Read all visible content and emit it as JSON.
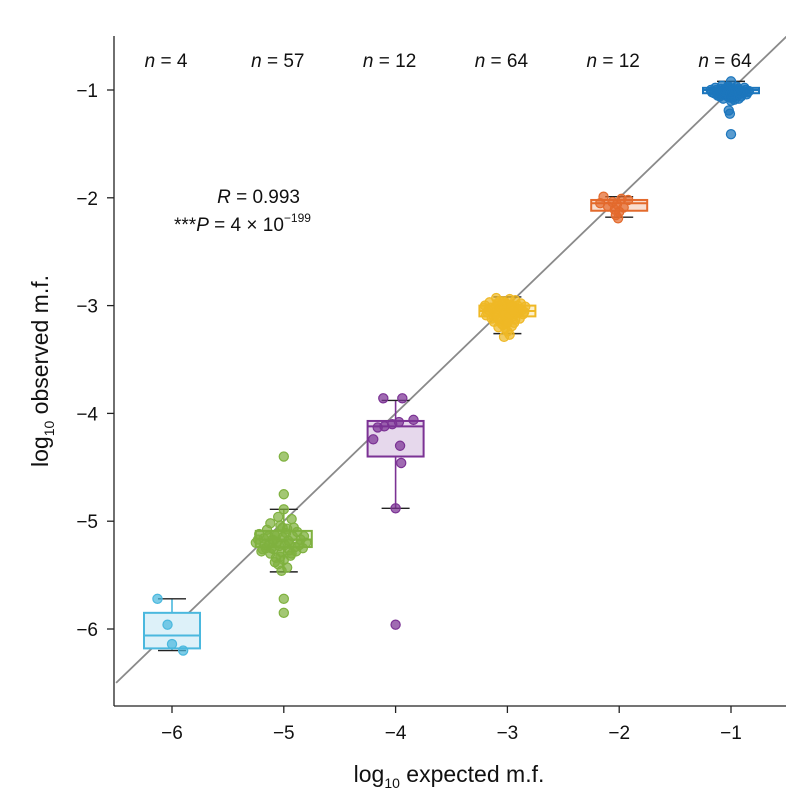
{
  "chart_data": {
    "type": "box",
    "xlabel": {
      "prefix": "log",
      "subscript": "10",
      "rest": " expected m.f."
    },
    "ylabel": {
      "prefix": "log",
      "subscript": "10",
      "rest": " observed m.f."
    },
    "xlim": [
      -6.5,
      -0.45
    ],
    "ylim": [
      -6.72,
      -0.45
    ],
    "x_ticks": [
      -6,
      -5,
      -4,
      -3,
      -2,
      -1
    ],
    "x_tick_labels": [
      "−6",
      "−5",
      "−4",
      "−3",
      "−2",
      "−1"
    ],
    "y_ticks": [
      -1,
      -2,
      -3,
      -4,
      -5,
      -6
    ],
    "y_tick_labels": [
      "−1",
      "−2",
      "−3",
      "−4",
      "−5",
      "−6"
    ],
    "reference_line": {
      "slope": 1,
      "intercept": 0,
      "color": "#8a8a8a"
    },
    "stats": {
      "r_label": "R",
      "r_text": " = 0.993",
      "p_stars": "***",
      "p_label": "P",
      "p_text": " = 4 × 10",
      "p_exponent": "−199"
    },
    "groups": [
      {
        "x": -6,
        "n_var": "n",
        "n_text": " = 4",
        "color": "#4ab8de",
        "fill": "#ddf1f9",
        "box": {
          "q1": -6.18,
          "median": -6.06,
          "q3": -5.85,
          "whisker_low": -6.2,
          "whisker_high": -5.72
        },
        "points": [
          [
            -6.13,
            -5.72
          ],
          [
            -6.04,
            -5.96
          ],
          [
            -6.0,
            -6.14
          ],
          [
            -5.9,
            -6.2
          ]
        ]
      },
      {
        "x": -5,
        "n_var": "n",
        "n_text": " = 57",
        "color": "#7fb13f",
        "fill": "#e7f1d9",
        "box": {
          "q1": -5.24,
          "median": -5.17,
          "q3": -5.09,
          "whisker_low": -5.47,
          "whisker_high": -4.89
        },
        "points": [
          [
            -5.0,
            -4.4
          ],
          [
            -5.0,
            -4.75
          ],
          [
            -5.0,
            -4.89
          ],
          [
            -5.05,
            -4.96
          ],
          [
            -4.93,
            -4.98
          ],
          [
            -5.12,
            -5.02
          ],
          [
            -5.03,
            -5.04
          ],
          [
            -4.97,
            -5.07
          ],
          [
            -5.15,
            -5.08
          ],
          [
            -4.88,
            -5.1
          ],
          [
            -5.22,
            -5.12
          ],
          [
            -5.08,
            -5.13
          ],
          [
            -4.92,
            -5.14
          ],
          [
            -5.01,
            -5.15
          ],
          [
            -5.18,
            -5.16
          ],
          [
            -5.1,
            -5.17
          ],
          [
            -4.85,
            -5.17
          ],
          [
            -4.96,
            -5.18
          ],
          [
            -5.06,
            -5.19
          ],
          [
            -5.25,
            -5.2
          ],
          [
            -4.8,
            -5.2
          ],
          [
            -5.13,
            -5.21
          ],
          [
            -4.99,
            -5.22
          ],
          [
            -5.04,
            -5.23
          ],
          [
            -4.9,
            -5.24
          ],
          [
            -5.16,
            -5.25
          ],
          [
            -4.83,
            -5.25
          ],
          [
            -5.09,
            -5.26
          ],
          [
            -4.95,
            -5.27
          ],
          [
            -5.2,
            -5.28
          ],
          [
            -5.02,
            -5.29
          ],
          [
            -5.12,
            -5.3
          ],
          [
            -4.94,
            -5.32
          ],
          [
            -5.07,
            -5.34
          ],
          [
            -5.0,
            -5.36
          ],
          [
            -5.05,
            -5.4
          ],
          [
            -4.97,
            -5.43
          ],
          [
            -5.02,
            -5.46
          ],
          [
            -5.0,
            -5.72
          ],
          [
            -5.0,
            -5.85
          ],
          [
            -5.14,
            -5.14
          ],
          [
            -4.86,
            -5.22
          ],
          [
            -5.23,
            -5.17
          ],
          [
            -4.91,
            -5.06
          ],
          [
            -5.11,
            -5.25
          ],
          [
            -4.98,
            -5.11
          ],
          [
            -5.06,
            -5.12
          ],
          [
            -4.89,
            -5.28
          ],
          [
            -5.17,
            -5.22
          ],
          [
            -5.03,
            -5.33
          ],
          [
            -4.95,
            -5.21
          ],
          [
            -5.09,
            -5.18
          ],
          [
            -4.82,
            -5.14
          ],
          [
            -5.19,
            -5.26
          ],
          [
            -5.01,
            -5.06
          ],
          [
            -4.93,
            -5.3
          ],
          [
            -5.08,
            -5.38
          ]
        ]
      },
      {
        "x": -4,
        "n_var": "n",
        "n_text": " = 12",
        "color": "#7b3294",
        "fill": "#e6d8ec",
        "box": {
          "q1": -4.4,
          "median": -4.12,
          "q3": -4.07,
          "whisker_low": -4.88,
          "whisker_high": -3.88
        },
        "points": [
          [
            -4.11,
            -3.86
          ],
          [
            -3.94,
            -3.86
          ],
          [
            -4.1,
            -4.12
          ],
          [
            -4.03,
            -4.1
          ],
          [
            -3.97,
            -4.08
          ],
          [
            -3.84,
            -4.06
          ],
          [
            -4.2,
            -4.24
          ],
          [
            -4.16,
            -4.13
          ],
          [
            -3.96,
            -4.3
          ],
          [
            -3.95,
            -4.46
          ],
          [
            -4.0,
            -4.88
          ],
          [
            -4.0,
            -5.96
          ]
        ]
      },
      {
        "x": -3,
        "n_var": "n",
        "n_text": " = 64",
        "color": "#efb825",
        "fill": "#fcf0cc",
        "box": {
          "q1": -3.1,
          "median": -3.05,
          "q3": -3.0,
          "whisker_low": -3.26,
          "whisker_high": -2.92
        },
        "points": [
          [
            -3.1,
            -2.93
          ],
          [
            -2.98,
            -2.94
          ],
          [
            -2.93,
            -2.95
          ],
          [
            -3.04,
            -2.96
          ],
          [
            -3.16,
            -2.97
          ],
          [
            -2.88,
            -2.98
          ],
          [
            -3.0,
            -2.99
          ],
          [
            -3.08,
            -3.0
          ],
          [
            -3.2,
            -3.0
          ],
          [
            -2.84,
            -3.01
          ],
          [
            -2.95,
            -3.02
          ],
          [
            -3.13,
            -3.03
          ],
          [
            -3.02,
            -3.04
          ],
          [
            -3.06,
            -3.05
          ],
          [
            -2.9,
            -3.05
          ],
          [
            -3.18,
            -3.06
          ],
          [
            -2.97,
            -3.07
          ],
          [
            -3.1,
            -3.08
          ],
          [
            -2.86,
            -3.08
          ],
          [
            -3.03,
            -3.09
          ],
          [
            -3.12,
            -3.1
          ],
          [
            -2.99,
            -3.11
          ],
          [
            -3.06,
            -3.12
          ],
          [
            -2.93,
            -3.13
          ],
          [
            -3.01,
            -3.15
          ],
          [
            -3.05,
            -3.17
          ],
          [
            -2.96,
            -3.19
          ],
          [
            -3.02,
            -3.21
          ],
          [
            -3.0,
            -3.24
          ],
          [
            -2.98,
            -3.27
          ],
          [
            -3.03,
            -3.29
          ],
          [
            -3.15,
            -3.02
          ],
          [
            -2.91,
            -3.0
          ],
          [
            -3.07,
            -3.14
          ],
          [
            -2.95,
            -3.1
          ],
          [
            -3.11,
            -3.06
          ],
          [
            -3.01,
            -3.01
          ],
          [
            -2.87,
            -3.04
          ],
          [
            -3.19,
            -3.09
          ],
          [
            -3.04,
            -3.18
          ],
          [
            -2.99,
            -3.06
          ],
          [
            -3.09,
            -2.98
          ],
          [
            -2.94,
            -3.16
          ],
          [
            -3.14,
            -3.12
          ],
          [
            -3.02,
            -2.97
          ],
          [
            -2.89,
            -3.12
          ],
          [
            -3.06,
            -3.02
          ],
          [
            -2.97,
            -3.03
          ],
          [
            -3.17,
            -3.04
          ],
          [
            -3.0,
            -3.13
          ],
          [
            -2.92,
            -3.07
          ],
          [
            -3.08,
            -3.2
          ],
          [
            -3.05,
            -2.99
          ],
          [
            -2.85,
            -3.06
          ],
          [
            -3.21,
            -3.02
          ],
          [
            -2.96,
            -3.0
          ],
          [
            -3.12,
            -3.15
          ],
          [
            -3.03,
            -3.08
          ],
          [
            -2.9,
            -3.03
          ],
          [
            -3.07,
            -2.96
          ],
          [
            -2.98,
            -3.09
          ],
          [
            -3.1,
            -3.11
          ],
          [
            -3.0,
            -3.16
          ],
          [
            -2.95,
            -3.05
          ]
        ]
      },
      {
        "x": -2,
        "n_var": "n",
        "n_text": " = 12",
        "color": "#e36a2c",
        "fill": "#f9ded0",
        "box": {
          "q1": -2.12,
          "median": -2.05,
          "q3": -2.02,
          "whisker_low": -2.18,
          "whisker_high": -1.99
        },
        "points": [
          [
            -2.14,
            -1.99
          ],
          [
            -1.98,
            -2.01
          ],
          [
            -1.92,
            -2.02
          ],
          [
            -2.06,
            -2.04
          ],
          [
            -2.02,
            -2.06
          ],
          [
            -2.17,
            -2.05
          ],
          [
            -2.1,
            -2.08
          ],
          [
            -1.96,
            -2.09
          ],
          [
            -2.04,
            -2.11
          ],
          [
            -2.0,
            -2.13
          ],
          [
            -2.03,
            -2.16
          ],
          [
            -2.01,
            -2.19
          ]
        ]
      },
      {
        "x": -1,
        "n_var": "n",
        "n_text": " = 64",
        "color": "#1c76bd",
        "fill": "#d2e4f3",
        "box": {
          "q1": -1.03,
          "median": -1.0,
          "q3": -0.98,
          "whisker_low": -1.07,
          "whisker_high": -0.92
        },
        "points": [
          [
            -1.0,
            -0.92
          ],
          [
            -1.08,
            -0.96
          ],
          [
            -0.95,
            -0.97
          ],
          [
            -1.14,
            -0.98
          ],
          [
            -0.88,
            -0.98
          ],
          [
            -1.02,
            -0.99
          ],
          [
            -0.99,
            -0.99
          ],
          [
            -1.06,
            -1.0
          ],
          [
            -0.92,
            -1.0
          ],
          [
            -1.18,
            -1.0
          ],
          [
            -0.84,
            -1.01
          ],
          [
            -1.04,
            -1.01
          ],
          [
            -0.97,
            -1.02
          ],
          [
            -1.1,
            -1.02
          ],
          [
            -0.9,
            -1.03
          ],
          [
            -1.01,
            -1.03
          ],
          [
            -1.05,
            -1.04
          ],
          [
            -0.94,
            -1.05
          ],
          [
            -1.12,
            -1.05
          ],
          [
            -0.86,
            -1.04
          ],
          [
            -1.03,
            -1.06
          ],
          [
            -0.98,
            -1.07
          ],
          [
            -1.07,
            -1.08
          ],
          [
            -0.93,
            -1.08
          ],
          [
            -1.0,
            -1.1
          ],
          [
            -0.97,
            -1.09
          ],
          [
            -1.02,
            -1.19
          ],
          [
            -1.01,
            -1.22
          ],
          [
            -1.0,
            -1.41
          ],
          [
            -1.09,
            -0.99
          ],
          [
            -0.96,
            -1.0
          ],
          [
            -1.15,
            -1.03
          ],
          [
            -0.89,
            -1.02
          ],
          [
            -1.03,
            -0.97
          ],
          [
            -0.99,
            -1.04
          ],
          [
            -1.11,
            -1.01
          ],
          [
            -0.91,
            -1.06
          ],
          [
            -1.06,
            -1.03
          ],
          [
            -0.95,
            -1.01
          ],
          [
            -1.01,
            -0.98
          ],
          [
            -1.13,
            -1.0
          ],
          [
            -0.87,
            -1.0
          ],
          [
            -1.04,
            -1.05
          ],
          [
            -0.98,
            -1.02
          ],
          [
            -1.08,
            -1.04
          ],
          [
            -0.94,
            -0.99
          ],
          [
            -1.02,
            -1.01
          ],
          [
            -1.17,
            -1.02
          ],
          [
            -0.85,
            -1.02
          ],
          [
            -1.0,
            -1.05
          ],
          [
            -1.05,
            -0.99
          ],
          [
            -0.92,
            -1.03
          ],
          [
            -1.1,
            -1.06
          ],
          [
            -0.96,
            -1.04
          ],
          [
            -1.03,
            -1.02
          ],
          [
            -0.99,
            -1.06
          ],
          [
            -1.07,
            -1.0
          ],
          [
            -0.9,
            -1.01
          ],
          [
            -1.12,
            -1.04
          ],
          [
            -0.97,
            -1.0
          ],
          [
            -1.01,
            -1.07
          ],
          [
            -0.93,
            -1.02
          ],
          [
            -1.06,
            -1.01
          ],
          [
            -1.0,
            -1.03
          ]
        ]
      }
    ]
  }
}
